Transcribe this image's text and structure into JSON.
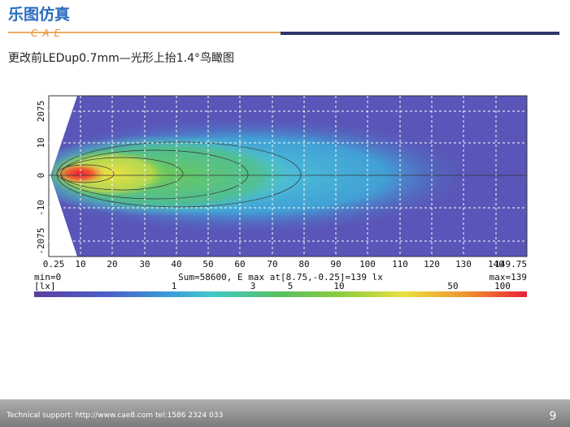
{
  "header": {
    "logo": "乐图仿真",
    "logo_sub": "CAE"
  },
  "slide_title": "更改前LEDup0.7mm—光形上抬1.4°鸟瞰图",
  "plot": {
    "x_tick_labels": [
      "0.25",
      "10",
      "20",
      "30",
      "40",
      "50",
      "60",
      "70",
      "80",
      "90",
      "100",
      "110",
      "120",
      "130",
      "140",
      "149.75"
    ],
    "y_tick_labels": [
      "2075",
      "10",
      "0",
      "-10",
      "-2075"
    ],
    "min_label": "min=0",
    "info_label": "Sum=58600, E max at[8.75,-0.25]=139 lx",
    "max_label": "max=139",
    "unit_label": "[lx]",
    "scale_labels": [
      "1",
      "3",
      "5",
      "10",
      "50",
      "100"
    ]
  },
  "footer": {
    "support": "Technical support: http://www.cae8.com  tel:1586 2324 033",
    "page_number": "9"
  }
}
